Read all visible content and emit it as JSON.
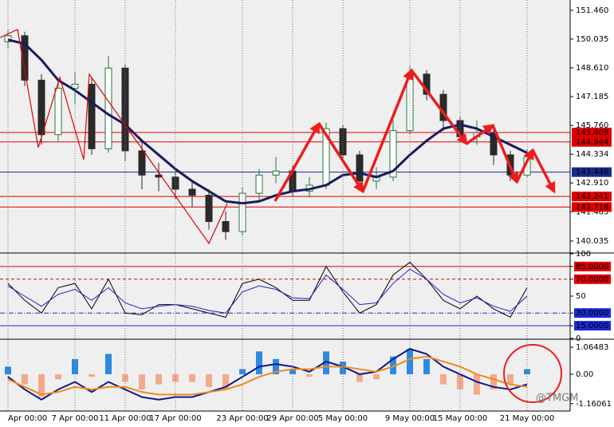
{
  "chart_data": [
    {
      "type": "candlestick",
      "open": [
        149.9,
        150.2,
        148.0,
        145.3,
        147.6,
        147.8,
        144.6,
        148.6,
        144.5,
        143.3,
        143.2,
        142.6,
        142.3,
        141.0,
        140.5,
        142.4,
        143.3,
        143.5,
        142.5,
        142.8,
        145.6,
        144.3,
        143.0,
        143.2,
        145.5,
        148.3,
        147.3,
        146.0,
        145.2,
        145.4,
        144.3,
        143.3
      ],
      "high": [
        150.5,
        150.4,
        148.3,
        148.0,
        148.4,
        148.1,
        149.2,
        148.8,
        145.0,
        143.9,
        143.5,
        143.0,
        142.6,
        141.5,
        142.7,
        143.6,
        144.2,
        143.8,
        143.2,
        145.9,
        145.8,
        144.5,
        143.7,
        146.0,
        148.7,
        148.5,
        147.5,
        146.2,
        146.0,
        145.6,
        144.5,
        144.6
      ],
      "low": [
        149.6,
        147.7,
        144.8,
        145.0,
        146.8,
        144.3,
        144.4,
        144.0,
        142.6,
        142.5,
        142.1,
        141.7,
        140.6,
        140.1,
        140.3,
        142.0,
        142.9,
        142.2,
        142.2,
        142.6,
        144.0,
        142.6,
        142.6,
        143.0,
        145.3,
        147.0,
        145.5,
        144.9,
        144.8,
        143.8,
        143.0,
        143.2
      ],
      "close": [
        150.2,
        148.0,
        145.3,
        147.6,
        147.8,
        144.6,
        148.6,
        144.5,
        143.3,
        143.2,
        142.6,
        142.3,
        141.0,
        140.5,
        142.4,
        143.3,
        143.5,
        142.5,
        142.8,
        145.6,
        144.3,
        143.0,
        143.2,
        145.5,
        148.3,
        147.3,
        146.0,
        145.2,
        145.4,
        144.3,
        143.3,
        144.2
      ],
      "up_color": "#1f7a3a",
      "down_color": "#2a2a2a",
      "ma": {
        "color": "#1b1b5e",
        "values": [
          150.0,
          149.8,
          149.0,
          148.0,
          147.5,
          146.9,
          146.3,
          145.8,
          145.0,
          144.3,
          143.6,
          143.0,
          142.5,
          142.0,
          141.9,
          142.0,
          142.3,
          142.5,
          142.6,
          142.8,
          143.3,
          143.4,
          143.2,
          143.5,
          144.3,
          145.0,
          145.6,
          145.8,
          145.6,
          145.2,
          144.8,
          144.4
        ]
      },
      "ylim": [
        139.48,
        151.97
      ],
      "yticks": [
        {
          "value": 151.46,
          "label": "151.460"
        },
        {
          "value": 150.035,
          "label": "150.035"
        },
        {
          "value": 148.61,
          "label": "148.610"
        },
        {
          "value": 147.185,
          "label": "147.185"
        },
        {
          "value": 145.76,
          "label": "145.760"
        },
        {
          "value": 144.334,
          "label": "144.334"
        },
        {
          "value": 142.91,
          "label": "142.910"
        },
        {
          "value": 141.485,
          "label": "141.485"
        },
        {
          "value": 140.035,
          "label": "140.035"
        }
      ],
      "levels": [
        {
          "value": 145.409,
          "label": "145.409",
          "color": "#e00000"
        },
        {
          "value": 144.944,
          "label": "144.944",
          "color": "#e00000"
        },
        {
          "value": 143.446,
          "label": "143.446",
          "color": "#1a2a8a"
        },
        {
          "value": 142.241,
          "label": "142.241",
          "color": "#e00000"
        },
        {
          "value": 141.718,
          "label": "141.718",
          "color": "#e00000"
        }
      ]
    },
    {
      "type": "line",
      "series": [
        {
          "color": "#000000",
          "values": [
            65,
            45,
            30,
            60,
            65,
            35,
            70,
            30,
            28,
            40,
            40,
            35,
            30,
            25,
            65,
            70,
            60,
            45,
            45,
            85,
            55,
            30,
            40,
            75,
            90,
            70,
            45,
            35,
            50,
            35,
            25,
            60
          ]
        },
        {
          "color": "#2020d0",
          "values": [
            62,
            50,
            38,
            52,
            58,
            45,
            60,
            42,
            35,
            38,
            40,
            38,
            33,
            30,
            55,
            62,
            58,
            48,
            47,
            75,
            58,
            40,
            42,
            65,
            82,
            70,
            52,
            42,
            48,
            38,
            32,
            50
          ]
        }
      ],
      "ylim": [
        0,
        100
      ],
      "yticks": [
        100,
        {
          "value": 85,
          "label": "85.0000",
          "color": "#e00000"
        },
        {
          "value": 70,
          "label": "70.0000",
          "color": "#e00000",
          "dash": "4 3"
        },
        50,
        {
          "value": 30,
          "label": "30.0000",
          "color": "#1a2ad0",
          "dash": "6 2 1 2"
        },
        {
          "value": 15,
          "label": "15.0000",
          "color": "#1a2ad0"
        },
        0
      ]
    },
    {
      "type": "macd",
      "categories": [
        "Apr 00:00",
        null,
        null,
        null,
        "7 Apr 00:00",
        null,
        null,
        "11 Apr 00:00",
        null,
        null,
        "17 Apr 00:00",
        null,
        null,
        null,
        "23 Apr 00:00",
        null,
        null,
        "29 Apr 00:00",
        null,
        null,
        "5 May 00:00",
        null,
        null,
        null,
        "9 May 00:00",
        null,
        null,
        "15 May 00:00",
        null,
        null,
        null,
        "21 May 00:00"
      ],
      "histogram": [
        0.3,
        -0.4,
        -0.9,
        -0.2,
        0.6,
        -0.1,
        0.8,
        -0.3,
        -0.6,
        -0.4,
        -0.3,
        -0.3,
        -0.5,
        -0.6,
        0.2,
        0.9,
        0.6,
        0.2,
        -0.1,
        0.9,
        0.5,
        -0.3,
        -0.2,
        0.7,
        1.0,
        0.6,
        -0.4,
        -0.6,
        -0.8,
        -0.6,
        -0.4,
        0.2
      ],
      "up_color": "#2b8be0",
      "down_color": "#f4a98c",
      "series": [
        {
          "color": "#0d1a8c",
          "values": [
            -0.1,
            -0.6,
            -1.0,
            -0.6,
            -0.3,
            -0.7,
            -0.3,
            -0.6,
            -0.9,
            -1.0,
            -0.9,
            -0.9,
            -0.7,
            -0.5,
            -0.1,
            0.3,
            0.4,
            0.3,
            0.1,
            0.5,
            0.3,
            0.0,
            0.1,
            0.6,
            1.0,
            0.8,
            0.3,
            0.0,
            -0.3,
            -0.5,
            -0.6,
            -0.4
          ]
        },
        {
          "color": "#f08a1c",
          "values": [
            -0.2,
            -0.5,
            -0.8,
            -0.7,
            -0.5,
            -0.6,
            -0.5,
            -0.5,
            -0.7,
            -0.8,
            -0.8,
            -0.8,
            -0.7,
            -0.6,
            -0.4,
            -0.1,
            0.1,
            0.2,
            0.2,
            0.3,
            0.3,
            0.2,
            0.1,
            0.3,
            0.6,
            0.7,
            0.5,
            0.3,
            0.0,
            -0.2,
            -0.4,
            -0.5
          ]
        }
      ],
      "ylim": [
        -1.45,
        1.35
      ],
      "yticks": [
        1.06483,
        {
          "value": 0,
          "label": "0.00"
        },
        {
          "value": -1.16061,
          "label": "-1.16061"
        }
      ]
    }
  ],
  "watermark": "@TMGM"
}
